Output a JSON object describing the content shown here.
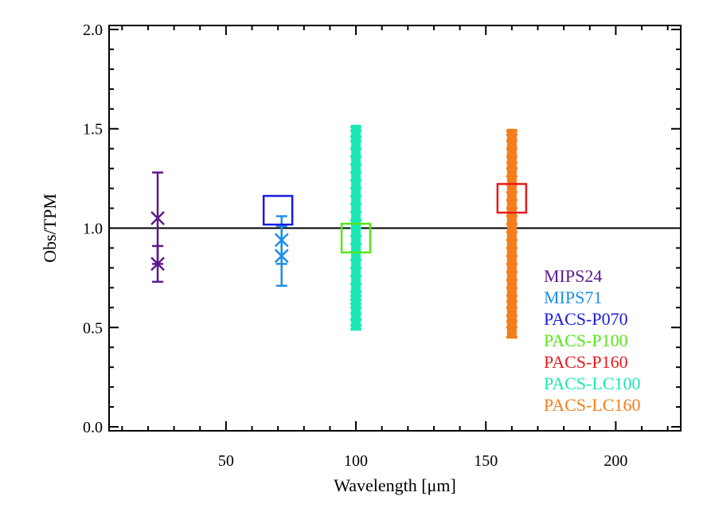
{
  "chart_data": {
    "type": "scatter",
    "xlabel": "Wavelength [μm]",
    "ylabel": "Obs/TPM",
    "xlim": [
      5,
      225
    ],
    "ylim": [
      -0.02,
      2.02
    ],
    "x_ticks": [
      50,
      100,
      150,
      200
    ],
    "x_tick_labels": [
      "50",
      "100",
      "150",
      "200"
    ],
    "x_minor_step": 10,
    "y_ticks": [
      0.0,
      0.5,
      1.0,
      1.5,
      2.0
    ],
    "y_tick_labels": [
      "0.0",
      "0.5",
      "1.0",
      "1.5",
      "2.0"
    ],
    "y_minor_step": 0.1,
    "reference_line_y": 1.0,
    "legend_position": "lower-right",
    "series": [
      {
        "name": "MIPS24",
        "color": "#5a1a8c",
        "marker": "x",
        "points": [
          {
            "x": 23.7,
            "y": 1.05,
            "yerr": 0.23
          },
          {
            "x": 23.7,
            "y": 0.82,
            "yerr": 0.09
          }
        ]
      },
      {
        "name": "MIPS71",
        "color": "#1e8ee8",
        "marker": "x",
        "points": [
          {
            "x": 71.4,
            "y": 0.94,
            "yerr": 0.12
          },
          {
            "x": 71.4,
            "y": 0.86,
            "yerr": 0.15
          }
        ]
      },
      {
        "name": "PACS-P070",
        "color": "#1a1ae0",
        "marker": "square",
        "points": [
          {
            "x": 70,
            "y": 1.09,
            "yerr": 0
          }
        ]
      },
      {
        "name": "PACS-P100",
        "color": "#55e61a",
        "marker": "square",
        "points": [
          {
            "x": 100,
            "y": 0.95,
            "yerr": 0
          }
        ]
      },
      {
        "name": "PACS-P160",
        "color": "#e81a1a",
        "marker": "square",
        "points": [
          {
            "x": 160,
            "y": 1.15,
            "yerr": 0
          }
        ]
      },
      {
        "name": "PACS-LC100",
        "color": "#1ae8b4",
        "marker": "dense-errorbars",
        "x": 100,
        "y_min": 0.49,
        "y_max": 1.52,
        "error_caps": [
          0.49,
          0.51,
          0.54,
          0.57,
          0.6,
          0.62,
          0.64,
          0.66,
          0.68,
          0.72,
          0.76,
          0.8,
          0.84,
          0.88,
          0.92,
          0.96,
          1.0,
          1.04,
          1.08,
          1.12,
          1.16,
          1.2,
          1.24,
          1.28,
          1.32,
          1.36,
          1.4,
          1.44,
          1.46,
          1.49,
          1.51
        ]
      },
      {
        "name": "PACS-LC160",
        "color": "#f57d1a",
        "marker": "dense-errorbars",
        "x": 160,
        "y_min": 0.45,
        "y_max": 1.5,
        "error_caps": [
          0.45,
          0.5,
          0.53,
          0.56,
          0.6,
          0.63,
          0.66,
          0.7,
          0.74,
          0.78,
          0.82,
          0.86,
          0.9,
          0.94,
          0.98,
          1.02,
          1.06,
          1.1,
          1.14,
          1.18,
          1.22,
          1.26,
          1.3,
          1.33,
          1.36,
          1.4,
          1.44,
          1.47,
          1.49
        ]
      }
    ]
  }
}
